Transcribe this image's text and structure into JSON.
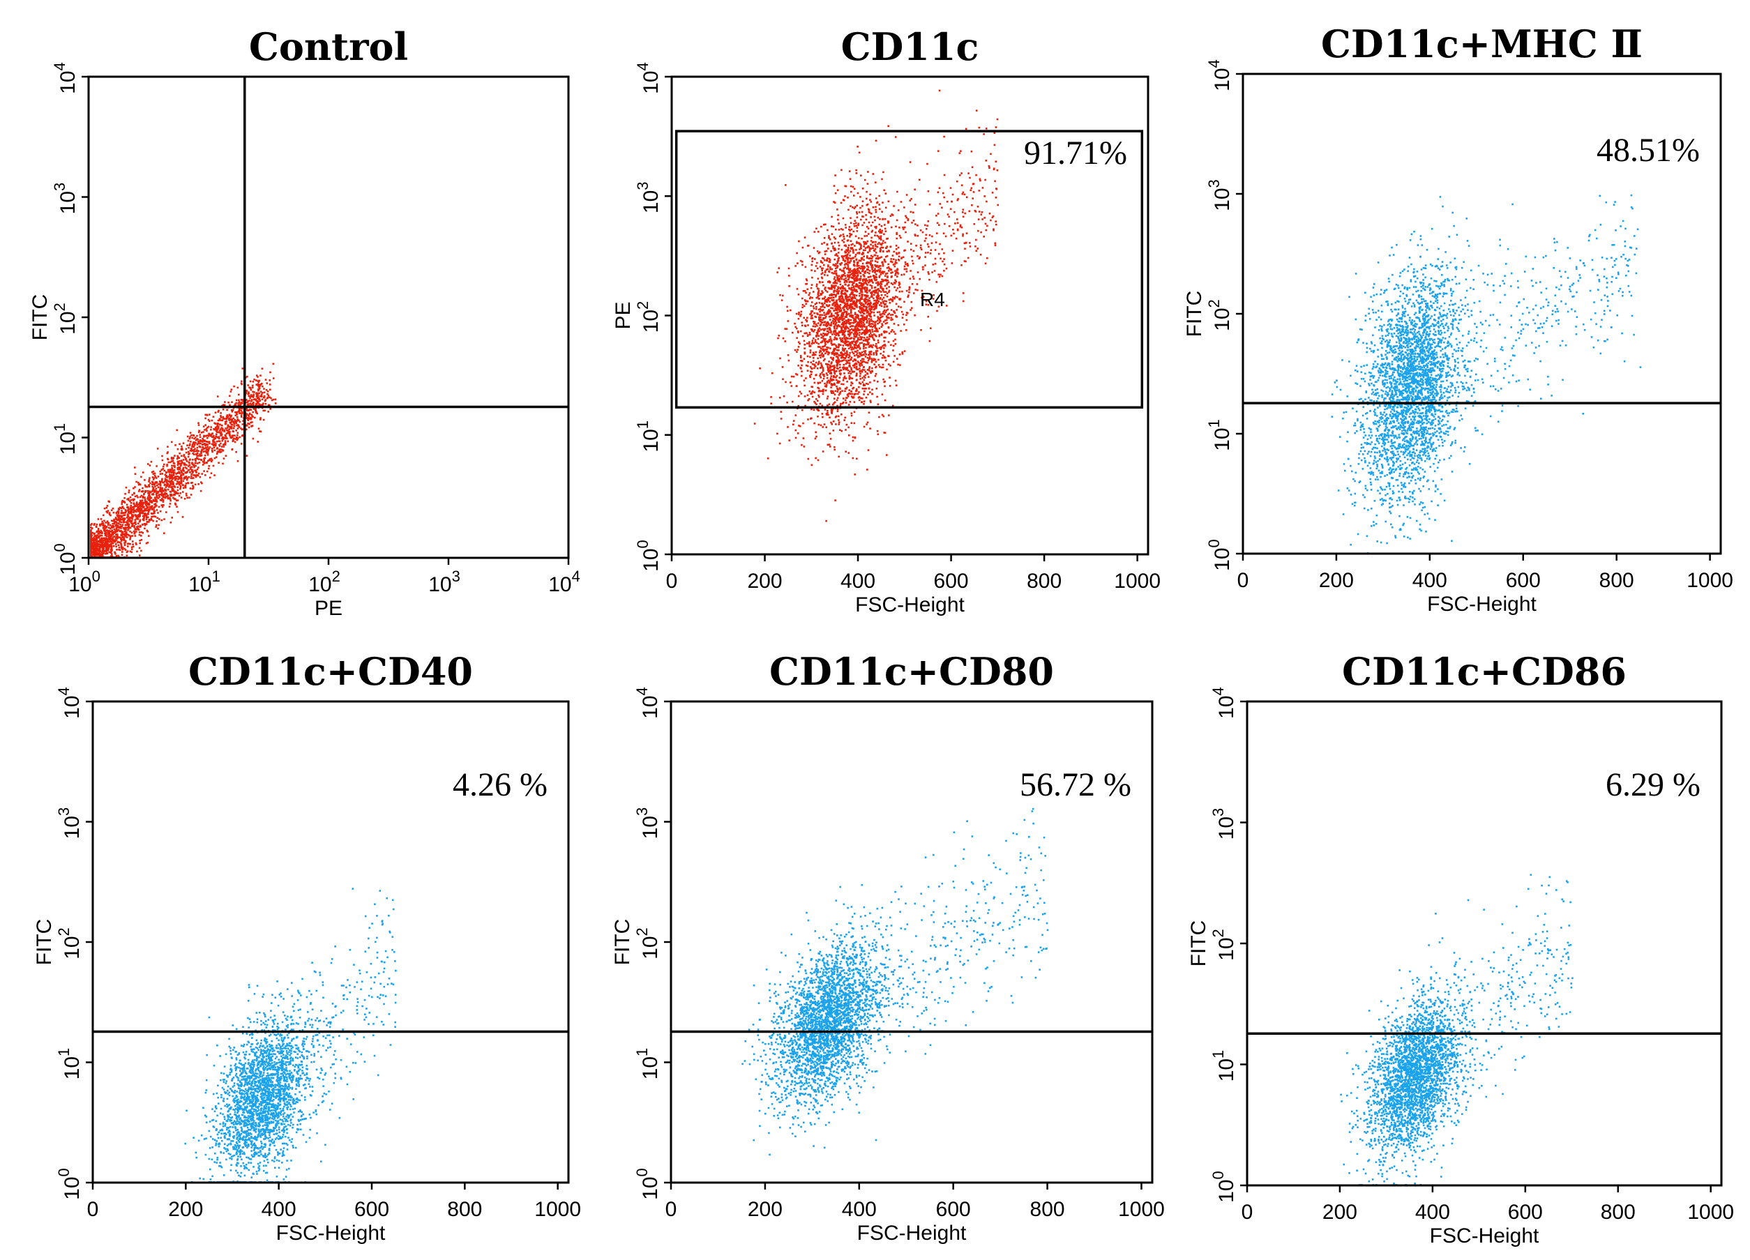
{
  "figure": {
    "description_free": true
  },
  "chart_data": [
    {
      "id": "control",
      "type": "scatter",
      "title": "Control",
      "xlabel": "PE",
      "ylabel": "FITC",
      "x_scale": "log",
      "y_scale": "log",
      "xlim": [
        1,
        10000
      ],
      "ylim": [
        1,
        10000
      ],
      "x_ticks": [
        {
          "exp": "0"
        },
        {
          "exp": "1"
        },
        {
          "exp": "2"
        },
        {
          "exp": "3"
        },
        {
          "exp": "4"
        }
      ],
      "y_ticks": [
        {
          "exp": "0"
        },
        {
          "exp": "1"
        },
        {
          "exp": "2"
        },
        {
          "exp": "3"
        },
        {
          "exp": "4"
        }
      ],
      "color": "#e8210c",
      "quadrant_x": 20,
      "quadrant_y": 18,
      "gate_label": "",
      "percent_label": "",
      "cloud": {
        "kind": "diagonal",
        "x_range": [
          1,
          30
        ],
        "spread": 0.18,
        "n": 2600
      }
    },
    {
      "id": "cd11c",
      "type": "scatter",
      "title": "CD11c",
      "xlabel": "FSC-Height",
      "ylabel": "PE",
      "x_scale": "linear",
      "y_scale": "log",
      "xlim": [
        0,
        1023
      ],
      "ylim": [
        1,
        10000
      ],
      "x_ticks": [
        "0",
        "200",
        "400",
        "600",
        "800",
        "1000"
      ],
      "y_ticks": [
        {
          "exp": "0"
        },
        {
          "exp": "1"
        },
        {
          "exp": "2"
        },
        {
          "exp": "3"
        },
        {
          "exp": "4"
        }
      ],
      "color": "#e8210c",
      "gate_rect": {
        "x_min": 10,
        "x_max": 1010,
        "y_min": 17,
        "y_max": 3500
      },
      "gate_label": "R4",
      "percent_label": "91.71%",
      "cloud": {
        "kind": "blob",
        "cx": 380,
        "cy": 100,
        "sx": 55,
        "sy": 0.42,
        "tail_x": 700,
        "n": 3400
      }
    },
    {
      "id": "cd11c_mhcii",
      "type": "scatter",
      "title": "CD11c+MHC Ⅱ",
      "xlabel": "FSC-Height",
      "ylabel": "FITC",
      "x_scale": "linear",
      "y_scale": "log",
      "xlim": [
        0,
        1023
      ],
      "ylim": [
        1,
        10000
      ],
      "x_ticks": [
        "0",
        "200",
        "400",
        "600",
        "800",
        "1000"
      ],
      "y_ticks": [
        {
          "exp": "0"
        },
        {
          "exp": "1"
        },
        {
          "exp": "2"
        },
        {
          "exp": "3"
        },
        {
          "exp": "4"
        }
      ],
      "color": "#1aa3ec",
      "threshold_y": 18,
      "gate_label": "",
      "percent_label": "48.51%",
      "cloud": {
        "kind": "blob",
        "cx": 360,
        "cy": 25,
        "sx": 55,
        "sy": 0.45,
        "tail_x": 850,
        "n": 3400
      }
    },
    {
      "id": "cd11c_cd40",
      "type": "scatter",
      "title": "CD11c+CD40",
      "xlabel": "FSC-Height",
      "ylabel": "FITC",
      "x_scale": "linear",
      "y_scale": "log",
      "xlim": [
        0,
        1023
      ],
      "ylim": [
        1,
        10000
      ],
      "x_ticks": [
        "0",
        "200",
        "400",
        "600",
        "800",
        "1000"
      ],
      "y_ticks": [
        {
          "exp": "0"
        },
        {
          "exp": "1"
        },
        {
          "exp": "2"
        },
        {
          "exp": "3"
        },
        {
          "exp": "4"
        }
      ],
      "color": "#1aa3ec",
      "threshold_y": 18,
      "gate_label": "",
      "percent_label": "4.26 %",
      "cloud": {
        "kind": "blob",
        "cx": 360,
        "cy": 5,
        "sx": 50,
        "sy": 0.3,
        "tail_x": 650,
        "n": 2600
      }
    },
    {
      "id": "cd11c_cd80",
      "type": "scatter",
      "title": "CD11c+CD80",
      "xlabel": "FSC-Height",
      "ylabel": "FITC",
      "x_scale": "linear",
      "y_scale": "log",
      "xlim": [
        0,
        1023
      ],
      "ylim": [
        1,
        10000
      ],
      "x_ticks": [
        "0",
        "200",
        "400",
        "600",
        "800",
        "1000"
      ],
      "y_ticks": [
        {
          "exp": "0"
        },
        {
          "exp": "1"
        },
        {
          "exp": "2"
        },
        {
          "exp": "3"
        },
        {
          "exp": "4"
        }
      ],
      "color": "#1aa3ec",
      "threshold_y": 18,
      "gate_label": "",
      "percent_label": "56.72 %",
      "cloud": {
        "kind": "blob",
        "cx": 330,
        "cy": 22,
        "sx": 55,
        "sy": 0.3,
        "tail_x": 800,
        "n": 3200
      }
    },
    {
      "id": "cd11c_cd86",
      "type": "scatter",
      "title": "CD11c+CD86",
      "xlabel": "FSC-Height",
      "ylabel": "FITC",
      "x_scale": "linear",
      "y_scale": "log",
      "xlim": [
        0,
        1023
      ],
      "ylim": [
        1,
        10000
      ],
      "x_ticks": [
        "0",
        "200",
        "400",
        "600",
        "800",
        "1000"
      ],
      "y_ticks": [
        {
          "exp": "0"
        },
        {
          "exp": "1"
        },
        {
          "exp": "2"
        },
        {
          "exp": "3"
        },
        {
          "exp": "4"
        }
      ],
      "color": "#1aa3ec",
      "threshold_y": 18,
      "gate_label": "",
      "percent_label": "6.29 %",
      "cloud": {
        "kind": "blob",
        "cx": 360,
        "cy": 8,
        "sx": 50,
        "sy": 0.3,
        "tail_x": 700,
        "n": 3000
      }
    }
  ]
}
